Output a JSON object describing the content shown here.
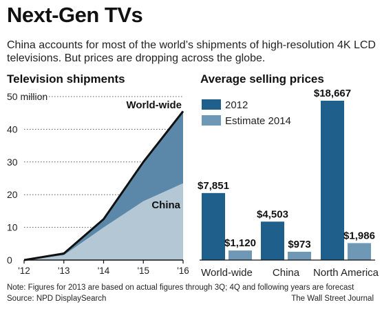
{
  "header": {
    "title": "Next-Gen TVs",
    "subtitle": "China accounts for most of the world’s shipments of high-resolution 4K LCD televisions. But prices are dropping across the globe."
  },
  "chart_data": [
    {
      "type": "area",
      "title": "Television shipments",
      "x": [
        "'12",
        "'13",
        "'14",
        "'15",
        "'16"
      ],
      "ylim": [
        0,
        50
      ],
      "y_ticks": [
        "0",
        "10",
        "20",
        "30",
        "40",
        "50 million"
      ],
      "grid": true,
      "series": [
        {
          "name": "World-wide",
          "values": [
            0,
            2,
            12.5,
            30,
            45.5
          ],
          "color": "#5b88a8"
        },
        {
          "name": "China",
          "values": [
            0,
            1.5,
            10,
            18,
            23.5
          ],
          "color": "#b3c7d5"
        }
      ],
      "line_color": "#111111"
    },
    {
      "type": "bar",
      "title": "Average selling prices",
      "categories": [
        "World-wide",
        "China",
        "North America"
      ],
      "legend_position": "top-left",
      "series": [
        {
          "name": "2012",
          "values": [
            7851,
            4503,
            18667
          ],
          "labels": [
            "$7,851",
            "$4,503",
            "$18,667"
          ],
          "color": "#1f5f8b"
        },
        {
          "name": "Estimate 2014",
          "values": [
            1120,
            973,
            1986
          ],
          "labels": [
            "$1,120",
            "$973",
            "$1,986"
          ],
          "color": "#6e98b5"
        }
      ],
      "ylim": [
        0,
        18667
      ]
    }
  ],
  "footer": {
    "note": "Note: Figures for 2013 are based on actual figures through 3Q; 4Q and following years are forecast",
    "source": "Source: NPD DisplaySearch",
    "credit": "The Wall Street Journal"
  }
}
